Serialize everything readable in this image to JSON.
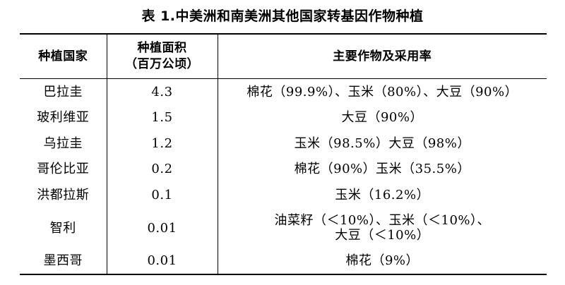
{
  "caption": "表 1.中美洲和南美洲其他国家转基因作物种植",
  "headers": {
    "country": "种植国家",
    "area_line1": "种植面积",
    "area_line2": "（百万公顷）",
    "crops": "主要作物及采用率"
  },
  "rows": [
    {
      "country": "巴拉圭",
      "area": "4.3",
      "crops_line1": "棉花（99.9%）、玉米（80%）、大豆（90%）",
      "crops_line2": ""
    },
    {
      "country": "玻利维亚",
      "area": "1.5",
      "crops_line1": "大豆（90%）",
      "crops_line2": ""
    },
    {
      "country": "乌拉圭",
      "area": "1.2",
      "crops_line1": "玉米（98.5%）大豆（98%）",
      "crops_line2": ""
    },
    {
      "country": "哥伦比亚",
      "area": "0.2",
      "crops_line1": "棉花（90%）玉米（35.5%）",
      "crops_line2": ""
    },
    {
      "country": "洪都拉斯",
      "area": "0.1",
      "crops_line1": "玉米（16.2%）",
      "crops_line2": ""
    },
    {
      "country": "智利",
      "area": "0.01",
      "crops_line1": "油菜籽（＜10%）、玉米（＜10%）、",
      "crops_line2": "大豆（＜10%）"
    },
    {
      "country": "墨西哥",
      "area": "0.01",
      "crops_line1": "棉花（9%）",
      "crops_line2": ""
    }
  ]
}
